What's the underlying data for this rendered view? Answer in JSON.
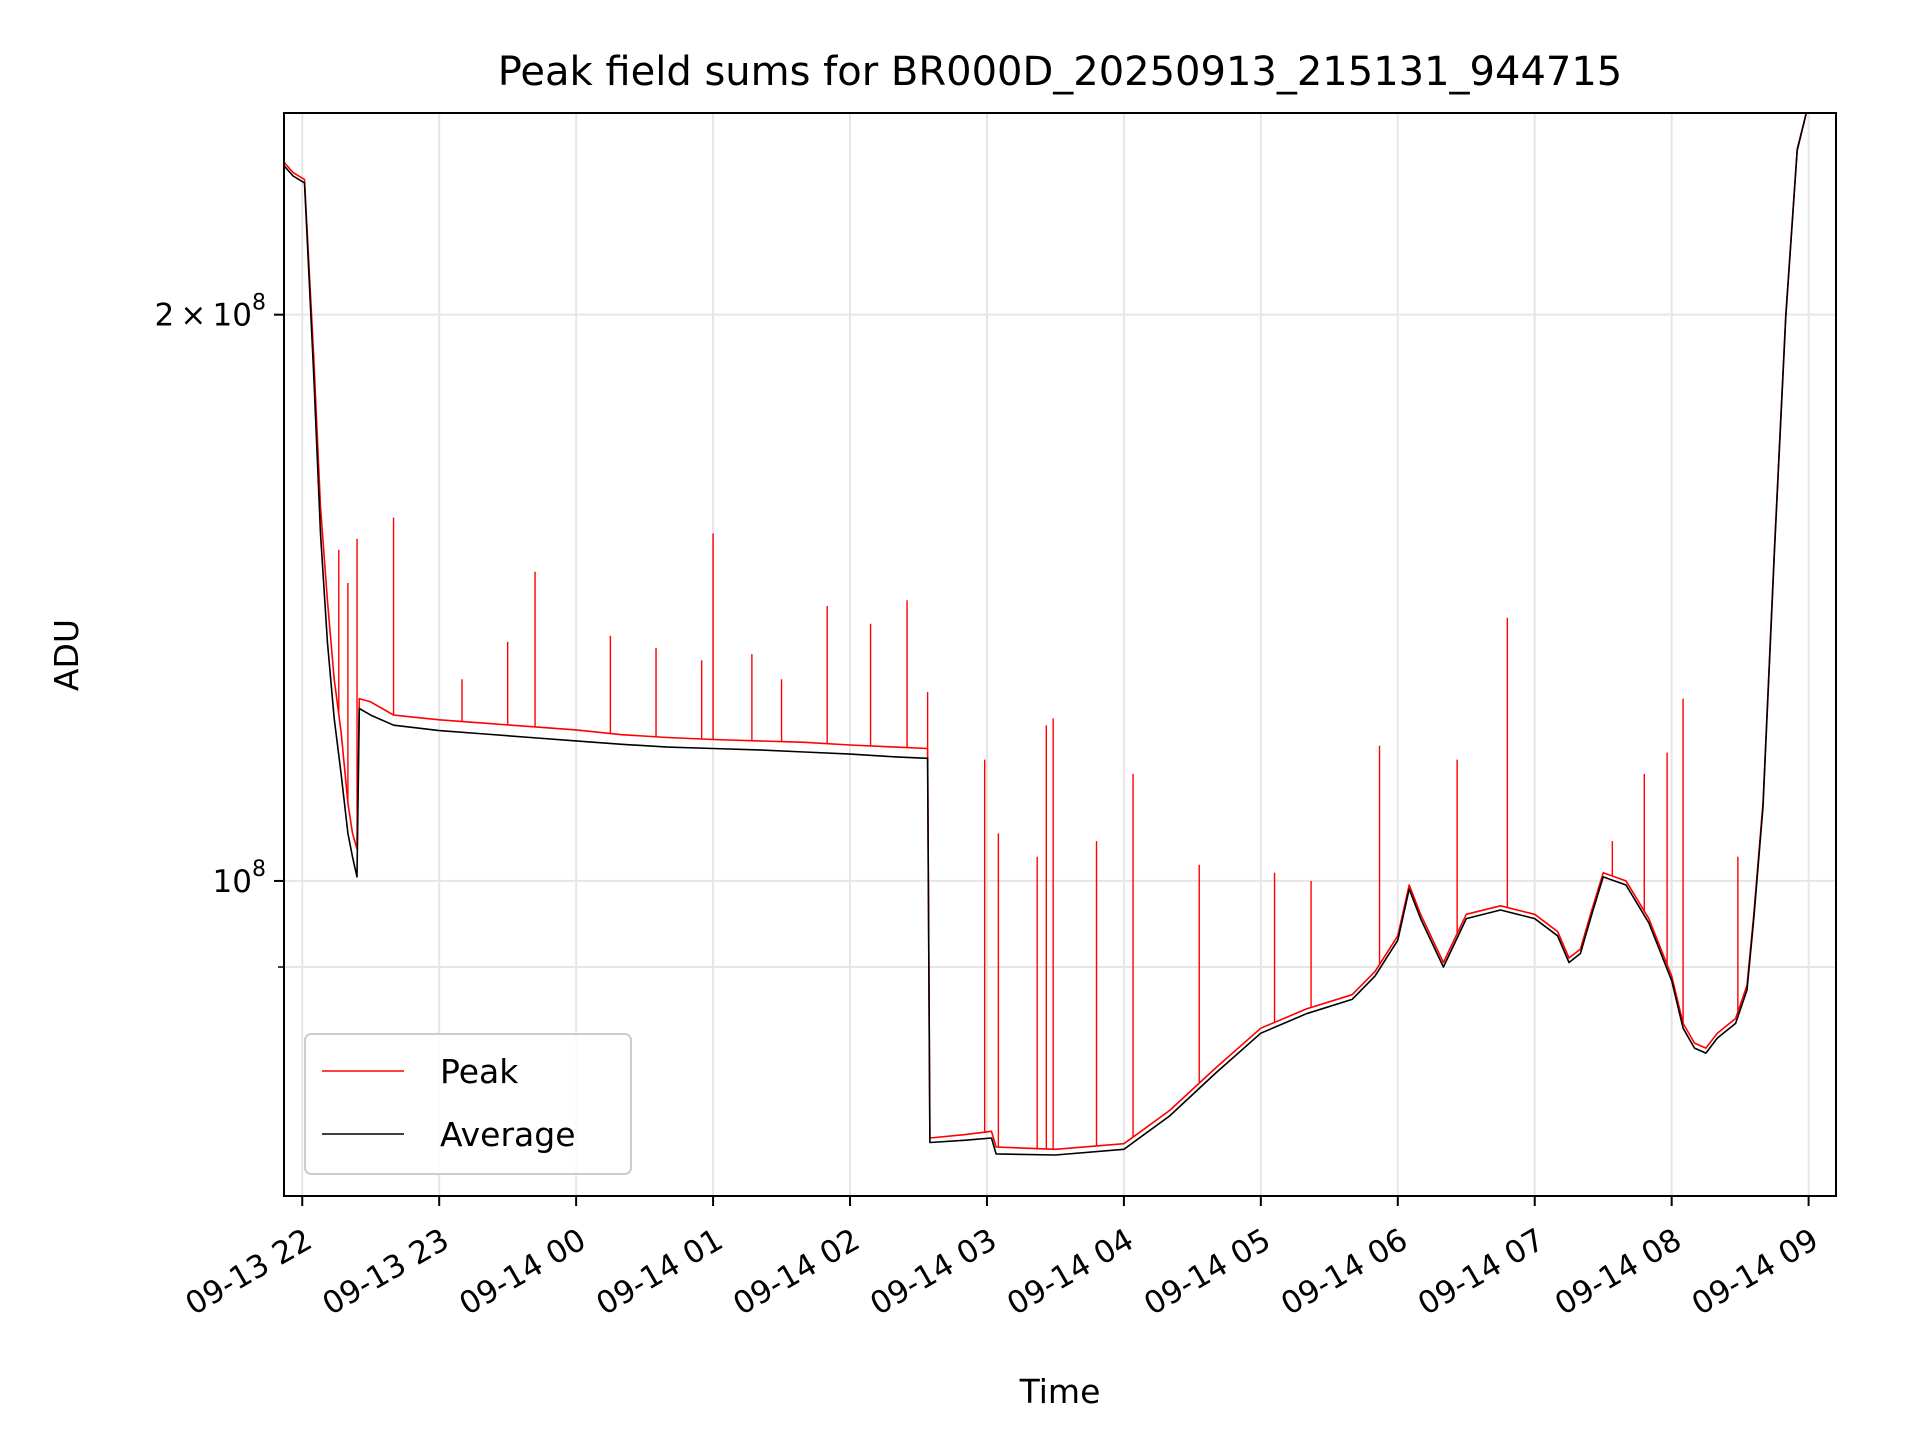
{
  "chart_data": {
    "type": "line",
    "title": "Peak field sums for BR000D_20250913_215131_944715",
    "xlabel": "Time",
    "ylabel": "ADU",
    "y_scale": "log",
    "ylim": [
      68000000,
      256000000
    ],
    "xlim": [
      "2025-09-13 21:52",
      "2025-09-14 09:12"
    ],
    "grid": true,
    "legend_position": "lower-left",
    "x_ticks": [
      {
        "t": "2025-09-13 22:00",
        "label": "09-13 22"
      },
      {
        "t": "2025-09-13 23:00",
        "label": "09-13 23"
      },
      {
        "t": "2025-09-14 00:00",
        "label": "09-14 00"
      },
      {
        "t": "2025-09-14 01:00",
        "label": "09-14 01"
      },
      {
        "t": "2025-09-14 02:00",
        "label": "09-14 02"
      },
      {
        "t": "2025-09-14 03:00",
        "label": "09-14 03"
      },
      {
        "t": "2025-09-14 04:00",
        "label": "09-14 04"
      },
      {
        "t": "2025-09-14 05:00",
        "label": "09-14 05"
      },
      {
        "t": "2025-09-14 06:00",
        "label": "09-14 06"
      },
      {
        "t": "2025-09-14 07:00",
        "label": "09-14 07"
      },
      {
        "t": "2025-09-14 08:00",
        "label": "09-14 08"
      },
      {
        "t": "2025-09-14 09:00",
        "label": "09-14 09"
      }
    ],
    "y_ticks": [
      {
        "value": 200000000,
        "mantissa": "2",
        "times": "×",
        "base": "10",
        "exp": "8"
      },
      {
        "value": 100000000,
        "mantissa": "",
        "times": "",
        "base": "10",
        "exp": "8"
      }
    ],
    "y_minor_ticks": [
      90000000
    ],
    "series": [
      {
        "name": "Peak",
        "color": "#ff0000",
        "points": [
          [
            "2025-09-13 21:52",
            241000000
          ],
          [
            "2025-09-13 21:56",
            238000000
          ],
          [
            "2025-09-13 22:01",
            236000000
          ],
          [
            "2025-09-13 22:05",
            190000000
          ],
          [
            "2025-09-13 22:08",
            158000000
          ],
          [
            "2025-09-13 22:11",
            141000000
          ],
          [
            "2025-09-13 22:14",
            128000000
          ],
          [
            "2025-09-13 22:17",
            120000000
          ],
          [
            "2025-09-13 22:20",
            110000000
          ],
          [
            "2025-09-13 22:22",
            106000000
          ],
          [
            "2025-09-13 22:24",
            104000000
          ],
          [
            "2025-09-13 22:25",
            125000000
          ],
          [
            "2025-09-13 22:30",
            124500000
          ],
          [
            "2025-09-13 22:40",
            122500000
          ],
          [
            "2025-09-13 23:00",
            121800000
          ],
          [
            "2025-09-13 23:20",
            121300000
          ],
          [
            "2025-09-13 23:40",
            120800000
          ],
          [
            "2025-09-14 00:00",
            120300000
          ],
          [
            "2025-09-14 00:20",
            119600000
          ],
          [
            "2025-09-14 00:40",
            119200000
          ],
          [
            "2025-09-14 01:00",
            118900000
          ],
          [
            "2025-09-14 01:20",
            118700000
          ],
          [
            "2025-09-14 01:40",
            118500000
          ],
          [
            "2025-09-14 02:00",
            118100000
          ],
          [
            "2025-09-14 02:20",
            117800000
          ],
          [
            "2025-09-14 02:34",
            117600000
          ],
          [
            "2025-09-14 02:35",
            73000000
          ],
          [
            "2025-09-14 02:50",
            73300000
          ],
          [
            "2025-09-14 03:02",
            73600000
          ],
          [
            "2025-09-14 03:04",
            72200000
          ],
          [
            "2025-09-14 03:30",
            72000000
          ],
          [
            "2025-09-14 04:00",
            72500000
          ],
          [
            "2025-09-14 04:20",
            75500000
          ],
          [
            "2025-09-14 04:40",
            79500000
          ],
          [
            "2025-09-14 05:00",
            83500000
          ],
          [
            "2025-09-14 05:20",
            85500000
          ],
          [
            "2025-09-14 05:40",
            87000000
          ],
          [
            "2025-09-14 05:50",
            89500000
          ],
          [
            "2025-09-14 06:00",
            93500000
          ],
          [
            "2025-09-14 06:05",
            99500000
          ],
          [
            "2025-09-14 06:10",
            96000000
          ],
          [
            "2025-09-14 06:20",
            90500000
          ],
          [
            "2025-09-14 06:30",
            96000000
          ],
          [
            "2025-09-14 06:45",
            97000000
          ],
          [
            "2025-09-14 07:00",
            96000000
          ],
          [
            "2025-09-14 07:10",
            94000000
          ],
          [
            "2025-09-14 07:15",
            91000000
          ],
          [
            "2025-09-14 07:20",
            92000000
          ],
          [
            "2025-09-14 07:25",
            96500000
          ],
          [
            "2025-09-14 07:30",
            101000000
          ],
          [
            "2025-09-14 07:40",
            100000000
          ],
          [
            "2025-09-14 07:50",
            95500000
          ],
          [
            "2025-09-14 08:00",
            89000000
          ],
          [
            "2025-09-14 08:05",
            84000000
          ],
          [
            "2025-09-14 08:10",
            82000000
          ],
          [
            "2025-09-14 08:15",
            81500000
          ],
          [
            "2025-09-14 08:20",
            83000000
          ],
          [
            "2025-09-14 08:28",
            84500000
          ],
          [
            "2025-09-14 08:33",
            88000000
          ],
          [
            "2025-09-14 08:36",
            96000000
          ],
          [
            "2025-09-14 08:40",
            110000000
          ],
          [
            "2025-09-14 08:45",
            150000000
          ],
          [
            "2025-09-14 08:50",
            200000000
          ],
          [
            "2025-09-14 08:55",
            245000000
          ],
          [
            "2025-09-14 08:59",
            256000000
          ]
        ],
        "spikes": [
          [
            "2025-09-13 22:16",
            150000000
          ],
          [
            "2025-09-13 22:20",
            144000000
          ],
          [
            "2025-09-13 22:24",
            152000000
          ],
          [
            "2025-09-13 22:40",
            156000000
          ],
          [
            "2025-09-13 23:10",
            128000000
          ],
          [
            "2025-09-13 23:30",
            134000000
          ],
          [
            "2025-09-13 23:42",
            146000000
          ],
          [
            "2025-09-14 00:15",
            135000000
          ],
          [
            "2025-09-14 00:35",
            133000000
          ],
          [
            "2025-09-14 00:55",
            131000000
          ],
          [
            "2025-09-14 01:00",
            153000000
          ],
          [
            "2025-09-14 01:17",
            132000000
          ],
          [
            "2025-09-14 01:30",
            128000000
          ],
          [
            "2025-09-14 01:50",
            140000000
          ],
          [
            "2025-09-14 02:09",
            137000000
          ],
          [
            "2025-09-14 02:25",
            141000000
          ],
          [
            "2025-09-14 02:34",
            126000000
          ],
          [
            "2025-09-14 02:59",
            116000000
          ],
          [
            "2025-09-14 03:05",
            106000000
          ],
          [
            "2025-09-14 03:22",
            103000000
          ],
          [
            "2025-09-14 03:26",
            121000000
          ],
          [
            "2025-09-14 03:29",
            122000000
          ],
          [
            "2025-09-14 03:48",
            105000000
          ],
          [
            "2025-09-14 04:04",
            114000000
          ],
          [
            "2025-09-14 04:33",
            102000000
          ],
          [
            "2025-09-14 05:06",
            101000000
          ],
          [
            "2025-09-14 05:22",
            100000000
          ],
          [
            "2025-09-14 05:52",
            118000000
          ],
          [
            "2025-09-14 06:26",
            116000000
          ],
          [
            "2025-09-14 06:48",
            138000000
          ],
          [
            "2025-09-14 07:34",
            105000000
          ],
          [
            "2025-09-14 07:48",
            114000000
          ],
          [
            "2025-09-14 07:58",
            117000000
          ],
          [
            "2025-09-14 08:05",
            125000000
          ],
          [
            "2025-09-14 08:29",
            103000000
          ]
        ]
      },
      {
        "name": "Average",
        "color": "#000000",
        "points": [
          [
            "2025-09-13 21:52",
            240000000
          ],
          [
            "2025-09-13 21:56",
            237000000
          ],
          [
            "2025-09-13 22:01",
            235000000
          ],
          [
            "2025-09-13 22:05",
            186000000
          ],
          [
            "2025-09-13 22:08",
            153000000
          ],
          [
            "2025-09-13 22:11",
            134000000
          ],
          [
            "2025-09-13 22:14",
            122000000
          ],
          [
            "2025-09-13 22:17",
            114000000
          ],
          [
            "2025-09-13 22:20",
            106000000
          ],
          [
            "2025-09-13 22:22",
            103000000
          ],
          [
            "2025-09-13 22:24",
            100500000
          ],
          [
            "2025-09-13 22:25",
            123500000
          ],
          [
            "2025-09-13 22:30",
            122500000
          ],
          [
            "2025-09-13 22:40",
            121000000
          ],
          [
            "2025-09-13 23:00",
            120200000
          ],
          [
            "2025-09-13 23:20",
            119700000
          ],
          [
            "2025-09-13 23:40",
            119200000
          ],
          [
            "2025-09-14 00:00",
            118700000
          ],
          [
            "2025-09-14 00:20",
            118200000
          ],
          [
            "2025-09-14 00:40",
            117800000
          ],
          [
            "2025-09-14 01:00",
            117600000
          ],
          [
            "2025-09-14 01:20",
            117400000
          ],
          [
            "2025-09-14 01:40",
            117100000
          ],
          [
            "2025-09-14 02:00",
            116800000
          ],
          [
            "2025-09-14 02:20",
            116400000
          ],
          [
            "2025-09-14 02:34",
            116200000
          ],
          [
            "2025-09-14 02:35",
            72600000
          ],
          [
            "2025-09-14 02:50",
            72800000
          ],
          [
            "2025-09-14 03:02",
            73000000
          ],
          [
            "2025-09-14 03:04",
            71600000
          ],
          [
            "2025-09-14 03:30",
            71500000
          ],
          [
            "2025-09-14 04:00",
            72000000
          ],
          [
            "2025-09-14 04:20",
            75000000
          ],
          [
            "2025-09-14 04:40",
            79000000
          ],
          [
            "2025-09-14 05:00",
            83000000
          ],
          [
            "2025-09-14 05:20",
            85000000
          ],
          [
            "2025-09-14 05:40",
            86500000
          ],
          [
            "2025-09-14 05:50",
            89000000
          ],
          [
            "2025-09-14 06:00",
            93000000
          ],
          [
            "2025-09-14 06:05",
            99000000
          ],
          [
            "2025-09-14 06:10",
            95500000
          ],
          [
            "2025-09-14 06:20",
            90000000
          ],
          [
            "2025-09-14 06:30",
            95500000
          ],
          [
            "2025-09-14 06:45",
            96500000
          ],
          [
            "2025-09-14 07:00",
            95500000
          ],
          [
            "2025-09-14 07:10",
            93500000
          ],
          [
            "2025-09-14 07:15",
            90500000
          ],
          [
            "2025-09-14 07:20",
            91500000
          ],
          [
            "2025-09-14 07:25",
            96000000
          ],
          [
            "2025-09-14 07:30",
            100500000
          ],
          [
            "2025-09-14 07:40",
            99500000
          ],
          [
            "2025-09-14 07:50",
            95000000
          ],
          [
            "2025-09-14 08:00",
            88500000
          ],
          [
            "2025-09-14 08:05",
            83500000
          ],
          [
            "2025-09-14 08:10",
            81500000
          ],
          [
            "2025-09-14 08:15",
            81000000
          ],
          [
            "2025-09-14 08:20",
            82500000
          ],
          [
            "2025-09-14 08:28",
            84000000
          ],
          [
            "2025-09-14 08:33",
            87500000
          ],
          [
            "2025-09-14 08:36",
            95500000
          ],
          [
            "2025-09-14 08:40",
            109500000
          ],
          [
            "2025-09-14 08:45",
            149500000
          ],
          [
            "2025-09-14 08:50",
            199500000
          ],
          [
            "2025-09-14 08:55",
            244500000
          ],
          [
            "2025-09-14 08:59",
            256000000
          ]
        ]
      }
    ]
  }
}
